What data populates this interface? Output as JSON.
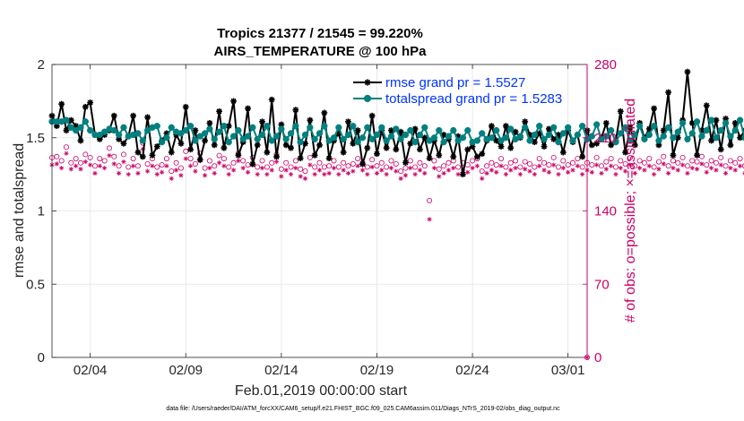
{
  "chart_data": {
    "type": "line",
    "title_line1": "Tropics 21377 / 21545 = 99.220%",
    "title_line2": "AIRS_TEMPERATURE @ 100 hPa",
    "xlabel": "Feb.01,2019 00:00:00 start",
    "ylabel_left": "rmse and totalspread",
    "ylabel_right": "# of obs: o=possible; ×=assimilated",
    "footer": "data file: /Users/raeder/DAI/ATM_forcXX/CAM6_setup/f.e21.FHIST_BGC.f09_025.CAM6assim.011/Diags_NTrS_2019-02/obs_diag_output.nc",
    "xlim": [
      1,
      29
    ],
    "ylim_left": [
      0,
      2
    ],
    "ylim_right": [
      0,
      280
    ],
    "grid": true,
    "x_tick_values": [
      3,
      8,
      13,
      18,
      23,
      28
    ],
    "x_ticks": [
      "02/04",
      "02/09",
      "02/14",
      "02/19",
      "02/24",
      "03/01"
    ],
    "y_ticks_left": [
      "0",
      "0.5",
      "1",
      "1.5",
      "2"
    ],
    "y_ticks_right": [
      "0",
      "70",
      "140",
      "210",
      "280"
    ],
    "colors": {
      "rmse": "#000000",
      "spread": "#00807f",
      "obs": "#cc0066",
      "legend_text": "#0033ff",
      "grid": "#e3e3e3"
    },
    "x_start": 1.0,
    "x_step": 0.25,
    "series": [
      {
        "name": "rmse grand pr = 1.5527",
        "axis": "left",
        "marker": "asterisk",
        "values": [
          1.65,
          1.58,
          1.73,
          1.55,
          1.62,
          1.58,
          1.48,
          1.71,
          1.74,
          1.52,
          1.49,
          1.52,
          1.55,
          1.65,
          1.49,
          1.46,
          1.51,
          1.65,
          1.4,
          1.37,
          1.64,
          1.38,
          1.44,
          1.48,
          1.53,
          1.4,
          1.52,
          1.46,
          1.71,
          1.42,
          1.55,
          1.35,
          1.48,
          1.6,
          1.45,
          1.68,
          1.43,
          1.58,
          1.75,
          1.38,
          1.47,
          1.7,
          1.32,
          1.45,
          1.61,
          1.4,
          1.76,
          1.37,
          1.59,
          1.45,
          1.43,
          1.69,
          1.36,
          1.46,
          1.62,
          1.38,
          1.45,
          1.67,
          1.36,
          1.48,
          1.53,
          1.4,
          1.61,
          1.46,
          1.55,
          1.32,
          1.43,
          1.65,
          1.39,
          1.55,
          1.43,
          1.55,
          1.42,
          1.54,
          1.33,
          1.46,
          1.56,
          1.42,
          1.5,
          1.36,
          1.48,
          1.38,
          1.52,
          1.49,
          1.37,
          1.51,
          1.25,
          1.42,
          1.44,
          1.37,
          1.39,
          1.48,
          1.58,
          1.48,
          1.44,
          1.58,
          1.43,
          1.54,
          1.5,
          1.61,
          1.52,
          1.47,
          1.53,
          1.44,
          1.56,
          1.49,
          1.52,
          1.4,
          1.55,
          1.47,
          1.52,
          1.37,
          1.55,
          1.45,
          1.46,
          1.5,
          1.6,
          1.45,
          1.48,
          1.68,
          1.4,
          1.57,
          1.45,
          1.6,
          1.5,
          1.56,
          1.7,
          1.45,
          1.55,
          1.81,
          1.38,
          1.5,
          1.62,
          1.95,
          1.6,
          1.38,
          1.55,
          1.72,
          1.48,
          1.62,
          1.42,
          1.63,
          1.45,
          1.6,
          1.5,
          1.55,
          1.4,
          1.6,
          1.46,
          1.68,
          1.55,
          1.52,
          1.41,
          1.62,
          1.45,
          1.57,
          1.5,
          1.75,
          1.48,
          1.66,
          1.54,
          1.6,
          1.45,
          1.62,
          1.55,
          1.7,
          1.49,
          1.56,
          1.53,
          1.65,
          1.42,
          1.38
        ]
      },
      {
        "name": "totalspread grand pr = 1.5283",
        "axis": "left",
        "marker": "circle",
        "values": [
          1.61,
          1.61,
          1.61,
          1.62,
          1.57,
          1.55,
          1.57,
          1.61,
          1.55,
          1.52,
          1.52,
          1.54,
          1.56,
          1.55,
          1.52,
          1.57,
          1.51,
          1.52,
          1.53,
          1.48,
          1.55,
          1.57,
          1.58,
          1.47,
          1.5,
          1.57,
          1.54,
          1.53,
          1.55,
          1.58,
          1.48,
          1.51,
          1.53,
          1.56,
          1.49,
          1.54,
          1.58,
          1.47,
          1.51,
          1.55,
          1.49,
          1.51,
          1.57,
          1.49,
          1.52,
          1.58,
          1.48,
          1.51,
          1.56,
          1.49,
          1.53,
          1.58,
          1.47,
          1.52,
          1.57,
          1.49,
          1.53,
          1.58,
          1.48,
          1.5,
          1.57,
          1.49,
          1.52,
          1.58,
          1.47,
          1.5,
          1.57,
          1.49,
          1.52,
          1.57,
          1.48,
          1.51,
          1.56,
          1.49,
          1.52,
          1.55,
          1.47,
          1.52,
          1.57,
          1.48,
          1.5,
          1.55,
          1.47,
          1.51,
          1.55,
          1.48,
          1.5,
          1.55,
          1.47,
          1.48,
          1.53,
          1.49,
          1.5,
          1.55,
          1.48,
          1.5,
          1.56,
          1.49,
          1.51,
          1.57,
          1.48,
          1.52,
          1.58,
          1.49,
          1.52,
          1.57,
          1.47,
          1.53,
          1.57,
          1.48,
          1.52,
          1.58,
          1.49,
          1.51,
          1.59,
          1.49,
          1.51,
          1.55,
          1.47,
          1.53,
          1.57,
          1.48,
          1.52,
          1.58,
          1.49,
          1.52,
          1.58,
          1.48,
          1.51,
          1.57,
          1.5,
          1.54,
          1.6,
          1.49,
          1.53,
          1.61,
          1.51,
          1.55,
          1.62,
          1.5,
          1.55,
          1.6,
          1.51,
          1.55,
          1.62,
          1.5,
          1.54,
          1.58,
          1.5,
          1.57,
          1.62,
          1.51,
          1.56,
          1.64,
          1.52,
          1.55,
          1.63,
          1.52,
          1.57,
          1.62,
          1.51,
          1.55,
          1.65,
          1.54,
          1.58,
          1.66,
          1.52,
          1.56,
          1.64,
          1.52,
          1.57,
          1.65,
          1.53,
          1.57,
          1.63,
          1.53,
          1.56,
          1.55
        ]
      },
      {
        "name": "possible obs",
        "axis": "right",
        "marker": "circle-open",
        "values": [
          191,
          192,
          188,
          201,
          186,
          190,
          186,
          194,
          191,
          183,
          190,
          188,
          200,
          192,
          183,
          194,
          182,
          190,
          183,
          205,
          185,
          190,
          182,
          184,
          190,
          178,
          186,
          181,
          197,
          190,
          185,
          195,
          181,
          188,
          183,
          193,
          190,
          182,
          186,
          195,
          188,
          184,
          191,
          182,
          188,
          182,
          186,
          194,
          180,
          186,
          182,
          188,
          180,
          178,
          191,
          182,
          186,
          182,
          183,
          188,
          182,
          186,
          183,
          185,
          190,
          186,
          182,
          189,
          183,
          186,
          182,
          188,
          185,
          178,
          181,
          188,
          182,
          186,
          183,
          150,
          188,
          180,
          183,
          186,
          188,
          182,
          186,
          184,
          188,
          190,
          178,
          183,
          186,
          184,
          190,
          182,
          186,
          188,
          182,
          187,
          185,
          182,
          190,
          186,
          184,
          191,
          182,
          188,
          184,
          186,
          190,
          182,
          186,
          184,
          191,
          183,
          187,
          190,
          182,
          188,
          185,
          191,
          183,
          188,
          186,
          190,
          182,
          187,
          192,
          183,
          188,
          186,
          191,
          183,
          188,
          187,
          192,
          184,
          188,
          186,
          191,
          183,
          188,
          186,
          190,
          183,
          187,
          185,
          191,
          183,
          188,
          186,
          190,
          182,
          187,
          185,
          191,
          182,
          188,
          186,
          190,
          183,
          187,
          186,
          190,
          183,
          188,
          185,
          190,
          184,
          188,
          186
        ]
      },
      {
        "name": "assimilated obs",
        "axis": "right",
        "marker": "asterisk",
        "values": [
          184,
          185,
          181,
          195,
          180,
          183,
          180,
          187,
          184,
          176,
          183,
          181,
          193,
          185,
          176,
          187,
          175,
          183,
          176,
          199,
          178,
          183,
          175,
          177,
          183,
          171,
          179,
          174,
          190,
          183,
          178,
          188,
          174,
          181,
          176,
          186,
          183,
          175,
          179,
          188,
          181,
          177,
          184,
          175,
          181,
          175,
          179,
          187,
          173,
          179,
          175,
          181,
          173,
          171,
          184,
          175,
          179,
          175,
          176,
          181,
          175,
          179,
          176,
          178,
          183,
          179,
          175,
          182,
          176,
          179,
          175,
          181,
          178,
          171,
          174,
          181,
          175,
          179,
          176,
          132,
          181,
          173,
          176,
          179,
          181,
          175,
          179,
          177,
          181,
          183,
          171,
          176,
          179,
          177,
          183,
          175,
          179,
          181,
          175,
          180,
          178,
          175,
          183,
          179,
          177,
          184,
          175,
          181,
          177,
          179,
          183,
          175,
          179,
          177,
          184,
          176,
          180,
          183,
          175,
          181,
          178,
          184,
          176,
          181,
          179,
          183,
          175,
          180,
          185,
          176,
          181,
          179,
          184,
          176,
          181,
          180,
          185,
          177,
          181,
          179,
          184,
          176,
          181,
          179,
          183,
          176,
          180,
          178,
          184,
          176,
          181,
          179,
          183,
          175,
          180,
          178,
          184,
          175,
          181,
          179,
          183,
          176,
          180,
          179,
          183,
          176,
          181,
          178,
          183,
          177,
          181,
          179
        ]
      }
    ]
  }
}
